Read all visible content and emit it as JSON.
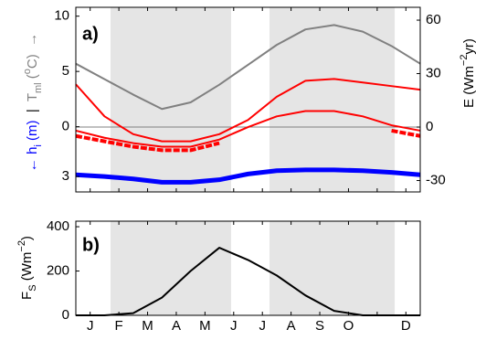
{
  "chart_data": [
    {
      "type": "line",
      "panel_label": "a)",
      "ylabel": [
        {
          "text": "← h",
          "color": "#0000ff"
        },
        {
          "text": "i",
          "sub": true,
          "color": "#0000ff"
        },
        {
          "text": " (m)",
          "color": "#0000ff"
        },
        {
          "text": "  |  ",
          "color": "#000000"
        },
        {
          "text": "T",
          "color": "#808080"
        },
        {
          "text": "ml",
          "sub": true,
          "color": "#808080"
        },
        {
          "text": " (",
          "color": "#808080"
        },
        {
          "text": "o",
          "sup": true,
          "color": "#808080"
        },
        {
          "text": "C)  →",
          "color": "#808080"
        }
      ],
      "y2label": [
        {
          "text": "E (Wm"
        },
        {
          "text": "−2",
          "sup": true
        },
        {
          "text": "yr)"
        }
      ],
      "xlim": [
        0,
        12
      ],
      "ylim": [
        -5.9,
        10.8
      ],
      "yticks": [
        0,
        5,
        10
      ],
      "y3lim": [
        3.94,
        -7.28
      ],
      "y3ticks": [
        3
      ],
      "y2lim": [
        -36.4,
        67.2
      ],
      "y2ticks": [
        -30,
        0,
        30,
        60
      ],
      "hline_y2": 0,
      "shaded": [
        [
          1.21,
          5.41
        ],
        [
          6.75,
          11.11
        ]
      ],
      "x": [
        0,
        1,
        2,
        3,
        4,
        5,
        6,
        7,
        8,
        9,
        10,
        11,
        12
      ],
      "series": [
        {
          "color": "#808080",
          "width": 2,
          "values": [
            5.7,
            4.3,
            2.9,
            1.6,
            2.2,
            3.8,
            5.6,
            7.4,
            8.8,
            9.2,
            8.6,
            7.3,
            5.7
          ]
        },
        {
          "color": "#ff0000",
          "width": 2,
          "axis": "y2",
          "values": [
            24,
            6,
            -4,
            -8,
            -8,
            -4,
            4,
            17,
            26,
            27,
            25,
            23,
            21
          ]
        },
        {
          "color": "#ff0000",
          "width": 2,
          "axis": "y2",
          "values": [
            -2,
            -6,
            -9,
            -11,
            -11,
            -7,
            0,
            6,
            9,
            9,
            6,
            1,
            -2
          ]
        },
        {
          "color": "#ff0000",
          "width": 4,
          "dash": true,
          "axis": "y2",
          "values": [
            -5,
            -8,
            -11,
            -13,
            -13,
            -9,
            null,
            null,
            null,
            null,
            null,
            -2,
            -5
          ]
        },
        {
          "color": "#0000ff",
          "width": 5,
          "axis": "y3",
          "values": [
            2.9,
            3.0,
            3.15,
            3.35,
            3.35,
            3.2,
            2.85,
            2.65,
            2.6,
            2.6,
            2.65,
            2.75,
            2.9
          ]
        }
      ]
    },
    {
      "type": "line",
      "panel_label": "b)",
      "ylabel": [
        {
          "text": "F"
        },
        {
          "text": "S",
          "sub": true
        },
        {
          "text": " (Wm"
        },
        {
          "text": "−2",
          "sup": true
        },
        {
          "text": ")"
        }
      ],
      "xlim": [
        0,
        12
      ],
      "xticks": [
        {
          "value": 0.5,
          "label": "J"
        },
        {
          "value": 1.5,
          "label": "F"
        },
        {
          "value": 2.5,
          "label": "M"
        },
        {
          "value": 3.5,
          "label": "A"
        },
        {
          "value": 4.5,
          "label": "M"
        },
        {
          "value": 5.5,
          "label": "J"
        },
        {
          "value": 6.5,
          "label": "J"
        },
        {
          "value": 7.5,
          "label": "A"
        },
        {
          "value": 8.5,
          "label": "S"
        },
        {
          "value": 9.5,
          "label": "O"
        },
        {
          "value": 10.5,
          "label": null
        },
        {
          "value": 11.5,
          "label": "D"
        }
      ],
      "ylim": [
        0,
        425
      ],
      "yticks": [
        0,
        200,
        400
      ],
      "shaded": [
        [
          1.21,
          5.41
        ],
        [
          6.75,
          11.11
        ]
      ],
      "x": [
        0,
        1,
        2,
        3,
        4,
        5,
        6,
        7,
        8,
        9,
        10,
        11,
        12
      ],
      "series": [
        {
          "color": "#000000",
          "width": 2,
          "values": [
            0,
            0,
            10,
            80,
            200,
            305,
            250,
            180,
            90,
            20,
            0,
            0,
            0
          ]
        }
      ]
    }
  ]
}
